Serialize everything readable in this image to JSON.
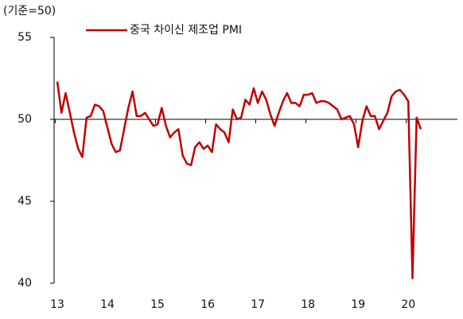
{
  "chart_data": {
    "type": "line",
    "ylabel": "(기준=50)",
    "categories": [
      "13",
      null,
      null,
      null,
      null,
      null,
      null,
      null,
      null,
      null,
      null,
      null,
      "14",
      null,
      null,
      null,
      null,
      null,
      null,
      null,
      null,
      null,
      null,
      null,
      "15",
      null,
      null,
      null,
      null,
      null,
      null,
      null,
      null,
      null,
      null,
      null,
      "16",
      null,
      null,
      null,
      null,
      null,
      null,
      null,
      null,
      null,
      null,
      null,
      "17",
      null,
      null,
      null,
      null,
      null,
      null,
      null,
      null,
      null,
      null,
      null,
      "18",
      null,
      null,
      null,
      null,
      null,
      null,
      null,
      null,
      null,
      null,
      null,
      "19",
      null,
      null,
      null,
      null,
      null,
      null,
      null,
      null,
      null,
      null,
      null,
      "20",
      null,
      null,
      null
    ],
    "series": [
      {
        "name": "중국 차이신 제조업 PMI",
        "color": "#c00000",
        "values": [
          52.3,
          50.4,
          51.6,
          50.4,
          49.2,
          48.2,
          47.7,
          50.1,
          50.2,
          50.9,
          50.8,
          50.5,
          49.5,
          48.5,
          48.0,
          48.1,
          49.4,
          50.7,
          51.7,
          50.2,
          50.2,
          50.4,
          50.0,
          49.6,
          49.7,
          50.7,
          49.6,
          48.9,
          49.2,
          49.4,
          47.8,
          47.3,
          47.2,
          48.3,
          48.6,
          48.2,
          48.4,
          48.0,
          49.7,
          49.4,
          49.2,
          48.6,
          50.6,
          50.0,
          50.1,
          51.2,
          50.9,
          51.9,
          51.0,
          51.7,
          51.2,
          50.3,
          49.6,
          50.4,
          51.1,
          51.6,
          51.0,
          51.0,
          50.8,
          51.5,
          51.5,
          51.6,
          51.0,
          51.1,
          51.1,
          51.0,
          50.8,
          50.6,
          50.0,
          50.1,
          50.2,
          49.7,
          48.3,
          49.9,
          50.8,
          50.2,
          50.2,
          49.4,
          49.9,
          50.4,
          51.4,
          51.7,
          51.8,
          51.5,
          51.1,
          40.3,
          50.1,
          49.4
        ]
      }
    ],
    "ylim": [
      40,
      55
    ],
    "yticks": [
      40,
      45,
      50,
      55
    ],
    "xaxis_at": 50
  }
}
